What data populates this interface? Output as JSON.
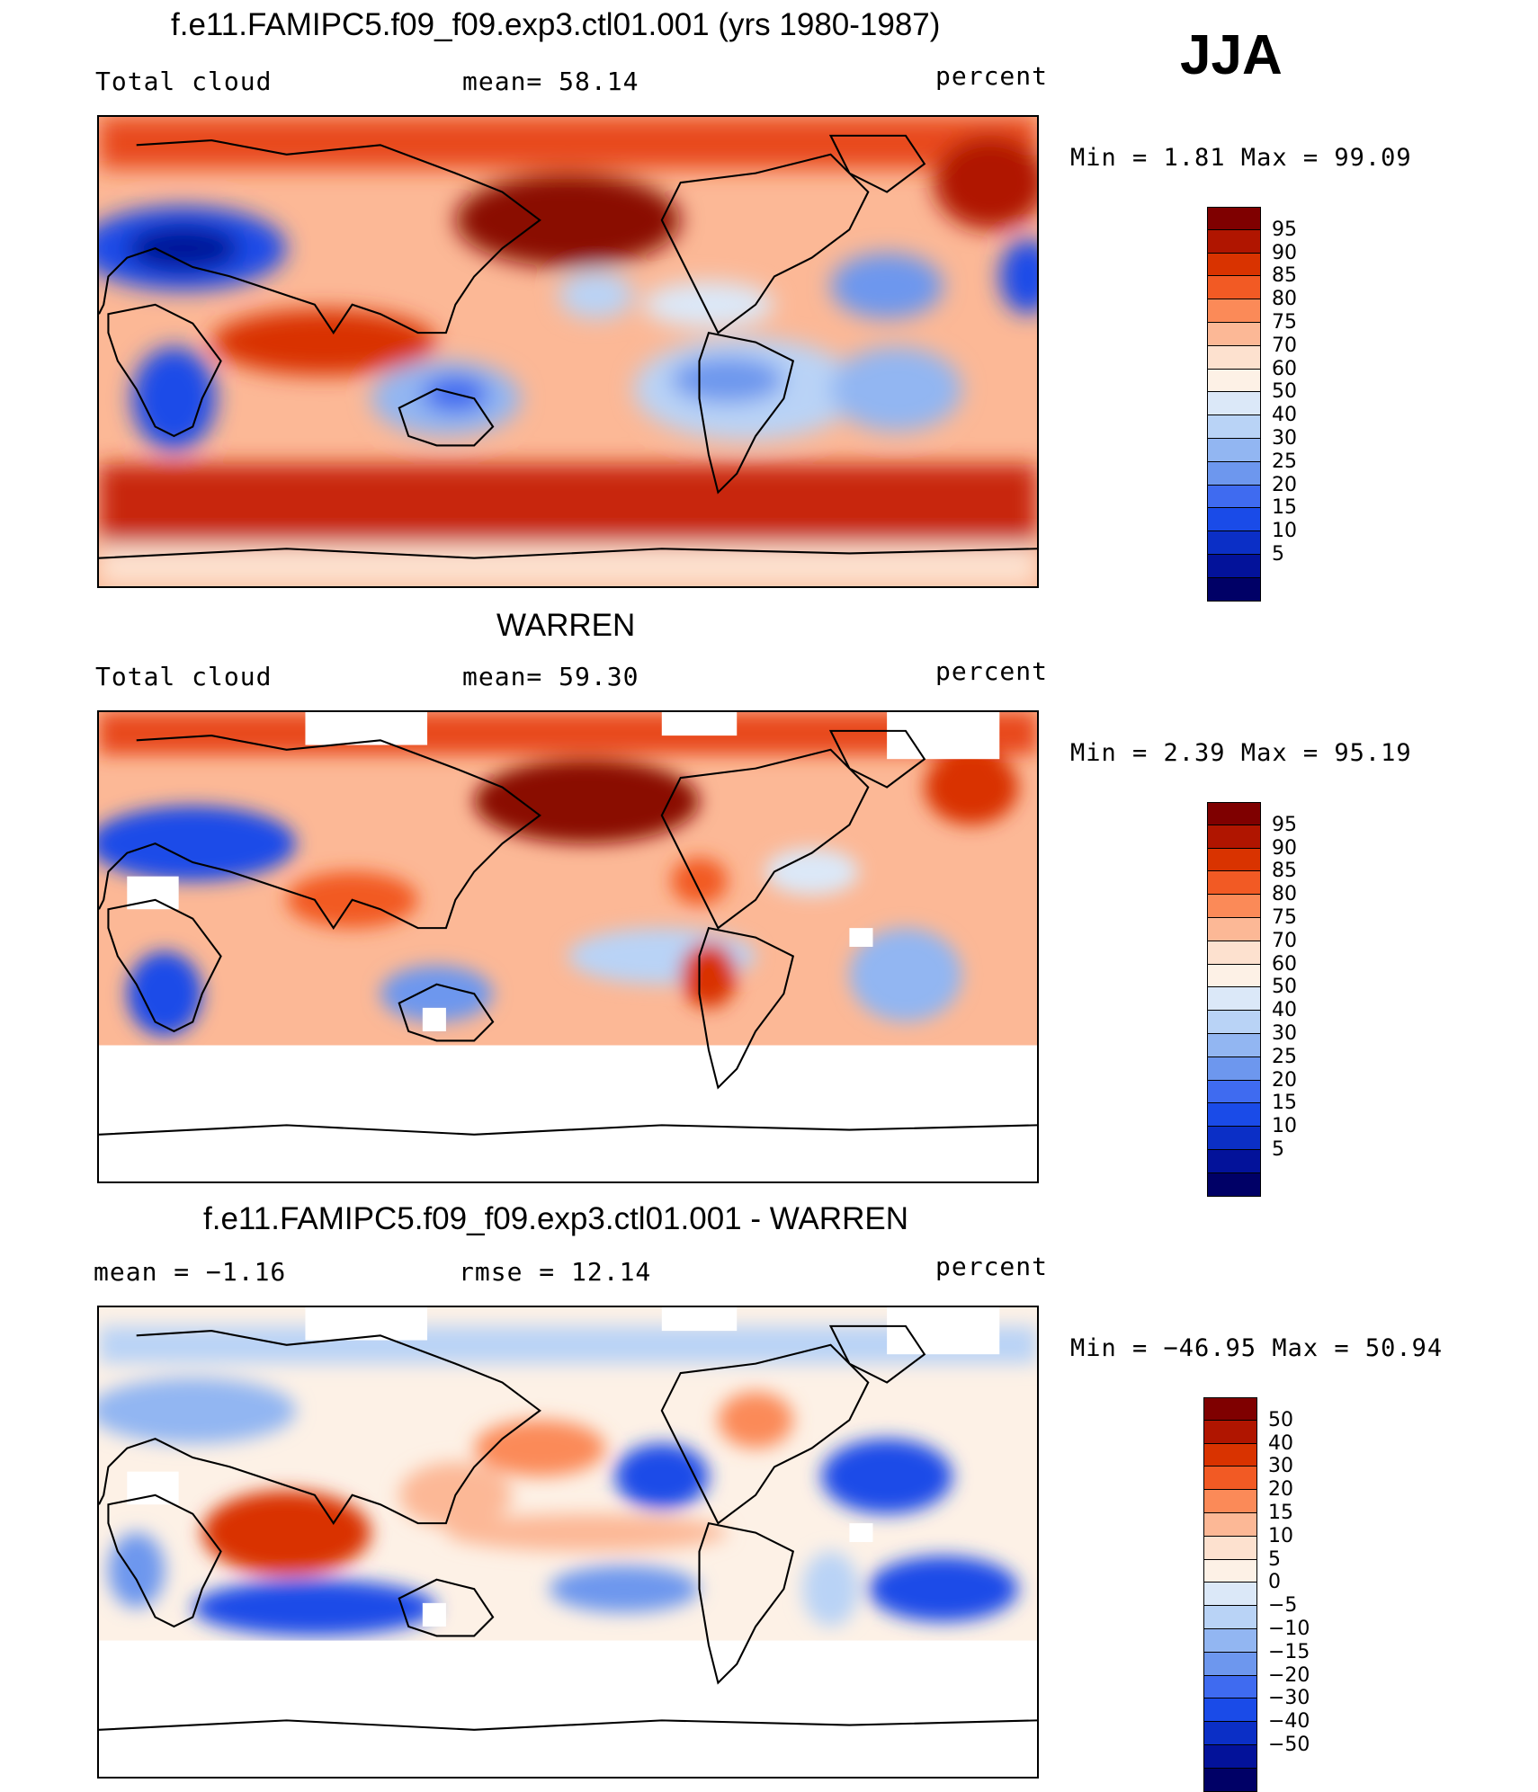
{
  "season": "JJA",
  "panels": [
    {
      "title": "f.e11.FAMIPC5.f09_f09.exp3.ctl01.001 (yrs 1980-1987)",
      "left_label": "Total cloud",
      "center_label": "mean=   58.14",
      "right_label": "percent",
      "minmax": "Min  =    1.81  Max  =   99.09",
      "colorbar": {
        "colors": [
          "#7f0000",
          "#b01500",
          "#d93300",
          "#f25a24",
          "#fb8a58",
          "#fcb896",
          "#fde1cf",
          "#fdf1e6",
          "#dbe8f8",
          "#b9d3f6",
          "#92b6f2",
          "#6d97ee",
          "#3f6bf0",
          "#1a4be8",
          "#0b2fc6",
          "#03129a",
          "#000066"
        ],
        "labels": [
          "95",
          "90",
          "85",
          "80",
          "75",
          "70",
          "60",
          "50",
          "40",
          "30",
          "25",
          "20",
          "15",
          "10",
          "5"
        ]
      }
    },
    {
      "title": "WARREN",
      "left_label": "Total cloud",
      "center_label": "mean=   59.30",
      "right_label": "percent",
      "minmax": "Min  =    2.39  Max  =   95.19",
      "colorbar": {
        "colors": [
          "#7f0000",
          "#b01500",
          "#d93300",
          "#f25a24",
          "#fb8a58",
          "#fcb896",
          "#fde1cf",
          "#fdf1e6",
          "#dbe8f8",
          "#b9d3f6",
          "#92b6f2",
          "#6d97ee",
          "#3f6bf0",
          "#1a4be8",
          "#0b2fc6",
          "#03129a",
          "#000066"
        ],
        "labels": [
          "95",
          "90",
          "85",
          "80",
          "75",
          "70",
          "60",
          "50",
          "40",
          "30",
          "25",
          "20",
          "15",
          "10",
          "5"
        ]
      }
    },
    {
      "title": "f.e11.FAMIPC5.f09_f09.exp3.ctl01.001 - WARREN",
      "left_label": "mean  =   −1.16",
      "center_label": "rmse  =   12.14",
      "right_label": "percent",
      "minmax": "Min  = −46.95  Max  =   50.94",
      "colorbar": {
        "colors": [
          "#7f0000",
          "#b01500",
          "#d93300",
          "#f25a24",
          "#fb8a58",
          "#fcb896",
          "#fde1cf",
          "#fdf1e6",
          "#dbe8f8",
          "#b9d3f6",
          "#92b6f2",
          "#6d97ee",
          "#3f6bf0",
          "#1a4be8",
          "#0b2fc6",
          "#03129a",
          "#000066"
        ],
        "labels": [
          "50",
          "40",
          "30",
          "20",
          "15",
          "10",
          "5",
          "0",
          "−5",
          "−10",
          "−15",
          "−20",
          "−30",
          "−40",
          "−50"
        ]
      }
    }
  ]
}
